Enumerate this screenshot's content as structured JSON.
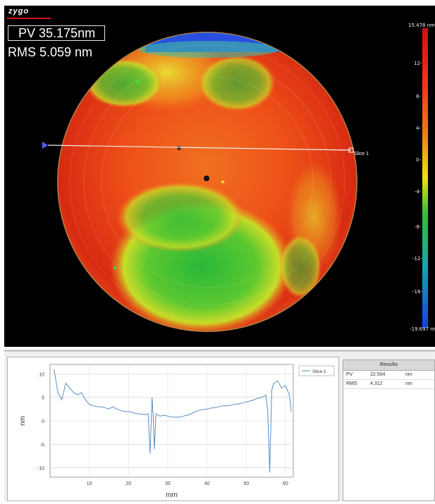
{
  "app": {
    "logo_text": "zygo"
  },
  "map": {
    "pv_label": "PV 35.175nm",
    "rms_label": "RMS 5.059  nm",
    "scale_max_label": "15.478 nm",
    "scale_min_label": "-19.697 nm",
    "scale_ticks": [
      "12-",
      "8-",
      "4-",
      "0-",
      "-4-",
      "-8-",
      "-12-",
      "-16-"
    ],
    "slice_label": "Slice 1",
    "colors": {
      "high": "#d42010",
      "mid": "#e8e020",
      "low": "#20b040",
      "lowest": "#2050e0"
    }
  },
  "results": {
    "title": "Results",
    "rows": [
      {
        "name": "PV",
        "value": "22.504",
        "unit": "nm"
      },
      {
        "name": "RMS",
        "value": "4.312",
        "unit": "nm"
      }
    ]
  },
  "chart_data": {
    "type": "line",
    "title": "",
    "xlabel": "mm",
    "ylabel": "nm",
    "xlim": [
      0,
      62
    ],
    "ylim": [
      -12,
      12
    ],
    "xticks": [
      "10",
      "20",
      "30",
      "40",
      "50",
      "60"
    ],
    "yticks": [
      "10",
      "5",
      "0",
      "-5",
      "-10"
    ],
    "legend": "top-right",
    "grid": true,
    "series": [
      {
        "name": "Slice 1",
        "color": "#5a8fc0",
        "x": [
          1,
          2,
          3,
          4,
          5,
          6,
          7,
          8,
          9,
          10,
          11,
          12,
          13,
          14,
          15,
          16,
          17,
          18,
          19,
          20,
          21,
          22,
          23,
          24,
          25,
          25.5,
          26,
          26.3,
          26.6,
          27,
          28,
          29,
          30,
          31,
          32,
          33,
          34,
          35,
          36,
          37,
          38,
          39,
          40,
          41,
          42,
          43,
          44,
          45,
          46,
          47,
          48,
          49,
          50,
          51,
          52,
          53,
          54,
          55,
          55.5,
          56,
          56.5,
          57,
          58,
          59,
          60,
          61,
          61.5
        ],
        "y": [
          11,
          6,
          4.5,
          8,
          7,
          6,
          5.5,
          6,
          4.5,
          3.5,
          3.2,
          3.0,
          3.0,
          2.8,
          2.5,
          3.0,
          2.5,
          2.2,
          2.0,
          2.0,
          1.8,
          1.5,
          1.5,
          1.3,
          1.5,
          -7,
          5,
          0.8,
          -6,
          1.5,
          1.0,
          1.2,
          1.0,
          0.8,
          0.8,
          0.8,
          1.0,
          1.2,
          1.5,
          2.0,
          2.2,
          2.4,
          2.5,
          2.7,
          2.8,
          3.0,
          3.2,
          3.2,
          3.3,
          3.5,
          3.6,
          3.8,
          4.0,
          4.2,
          4.5,
          4.8,
          5.0,
          5.5,
          2.0,
          -11,
          6.5,
          8.0,
          8.5,
          7.0,
          7.5,
          5.5,
          2.0
        ]
      }
    ]
  }
}
